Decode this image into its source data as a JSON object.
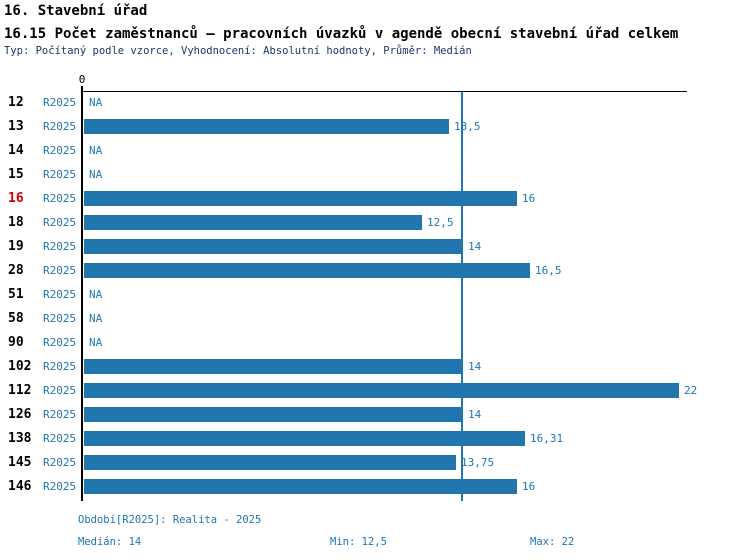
{
  "header": {
    "title": "16. Stavební úřad",
    "subtitle": "16.15 Počet zaměstnanců – pracovních úvazků v agendě obecní stavební úřad celkem",
    "meta": "Typ: Počítaný podle vzorce, Vyhodnocení: Absolutní hodnoty, Průměr: Medián"
  },
  "chart_data": {
    "type": "bar",
    "orientation": "horizontal",
    "title": "16.15 Počet zaměstnanců – pracovních úvazků v agendě obecní stavební úřad celkem",
    "xlabel": "",
    "ylabel": "",
    "xlim": [
      0,
      22
    ],
    "zero_tick_label": "0",
    "median_value": 14,
    "na_label": "NA",
    "rows": [
      {
        "label": "12",
        "period": "R2025",
        "value": null,
        "display": "NA",
        "highlight": false
      },
      {
        "label": "13",
        "period": "R2025",
        "value": 13.5,
        "display": "13,5",
        "highlight": false
      },
      {
        "label": "14",
        "period": "R2025",
        "value": null,
        "display": "NA",
        "highlight": false
      },
      {
        "label": "15",
        "period": "R2025",
        "value": null,
        "display": "NA",
        "highlight": false
      },
      {
        "label": "16",
        "period": "R2025",
        "value": 16,
        "display": "16",
        "highlight": true
      },
      {
        "label": "18",
        "period": "R2025",
        "value": 12.5,
        "display": "12,5",
        "highlight": false
      },
      {
        "label": "19",
        "period": "R2025",
        "value": 14,
        "display": "14",
        "highlight": false
      },
      {
        "label": "28",
        "period": "R2025",
        "value": 16.5,
        "display": "16,5",
        "highlight": false
      },
      {
        "label": "51",
        "period": "R2025",
        "value": null,
        "display": "NA",
        "highlight": false
      },
      {
        "label": "58",
        "period": "R2025",
        "value": null,
        "display": "NA",
        "highlight": false
      },
      {
        "label": "90",
        "period": "R2025",
        "value": null,
        "display": "NA",
        "highlight": false
      },
      {
        "label": "102",
        "period": "R2025",
        "value": 14,
        "display": "14",
        "highlight": false
      },
      {
        "label": "112",
        "period": "R2025",
        "value": 22,
        "display": "22",
        "highlight": false
      },
      {
        "label": "126",
        "period": "R2025",
        "value": 14,
        "display": "14",
        "highlight": false
      },
      {
        "label": "138",
        "period": "R2025",
        "value": 16.31,
        "display": "16,31",
        "highlight": false
      },
      {
        "label": "145",
        "period": "R2025",
        "value": 13.75,
        "display": "13,75",
        "highlight": false
      },
      {
        "label": "146",
        "period": "R2025",
        "value": 16,
        "display": "16",
        "highlight": false
      }
    ]
  },
  "footer": {
    "period_line": "Období[R2025]: Realita - 2025",
    "median_label": "Medián: 14",
    "min_label": "Min: 12,5",
    "max_label": "Max: 22"
  },
  "colors": {
    "bar": "#2176ae",
    "blue_text": "#2176ae",
    "meta_text": "#1f3864",
    "highlight_text": "#d40000",
    "axis": "#000000"
  }
}
